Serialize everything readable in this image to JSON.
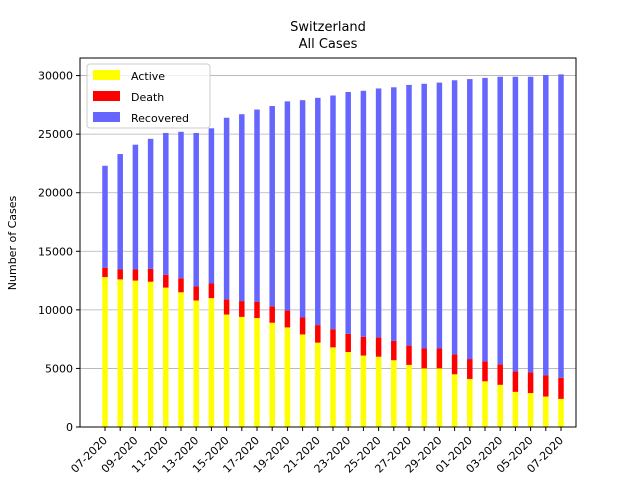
{
  "chart_data": {
    "type": "bar",
    "stacked": true,
    "title": "Switzerland",
    "subtitle": "All Cases",
    "xlabel": "",
    "ylabel": "Number of Cases",
    "ylim": [
      0,
      31500
    ],
    "yticks": [
      0,
      5000,
      10000,
      15000,
      20000,
      25000,
      30000
    ],
    "grid": "y",
    "legend_position": "top-left",
    "categories": [
      "07-2020",
      "",
      "09-2020",
      "",
      "11-2020",
      "",
      "13-2020",
      "",
      "15-2020",
      "",
      "17-2020",
      "",
      "19-2020",
      "",
      "21-2020",
      "",
      "23-2020",
      "",
      "25-2020",
      "",
      "27-2020",
      "",
      "29-2020",
      "",
      "01-2020",
      "",
      "03-2020",
      "",
      "05-2020",
      "",
      "07-2020"
    ],
    "series": [
      {
        "name": "Active",
        "color": "#ffff00",
        "values": [
          12800,
          12600,
          12500,
          12400,
          11900,
          11500,
          10800,
          11000,
          9600,
          9400,
          9300,
          8900,
          8500,
          7900,
          7200,
          6800,
          6400,
          6100,
          6000,
          5700,
          5300,
          5000,
          5000,
          4500,
          4100,
          3900,
          3600,
          3000,
          2900,
          2600,
          2400
        ]
      },
      {
        "name": "Death",
        "color": "#ff0000",
        "values": [
          800,
          850,
          950,
          1100,
          1100,
          1200,
          1200,
          1250,
          1300,
          1350,
          1400,
          1400,
          1450,
          1450,
          1500,
          1550,
          1550,
          1600,
          1650,
          1650,
          1650,
          1700,
          1700,
          1700,
          1700,
          1700,
          1750,
          1750,
          1750,
          1800,
          1800
        ]
      },
      {
        "name": "Recovered",
        "color": "#6666ff",
        "values": [
          8700,
          9850,
          10650,
          11100,
          12100,
          12500,
          13100,
          13250,
          15500,
          15950,
          16400,
          17100,
          17850,
          18550,
          19400,
          19950,
          20650,
          21000,
          21250,
          21650,
          22250,
          22600,
          22700,
          23400,
          23900,
          24200,
          24550,
          25150,
          25250,
          25650,
          25900
        ]
      }
    ]
  }
}
